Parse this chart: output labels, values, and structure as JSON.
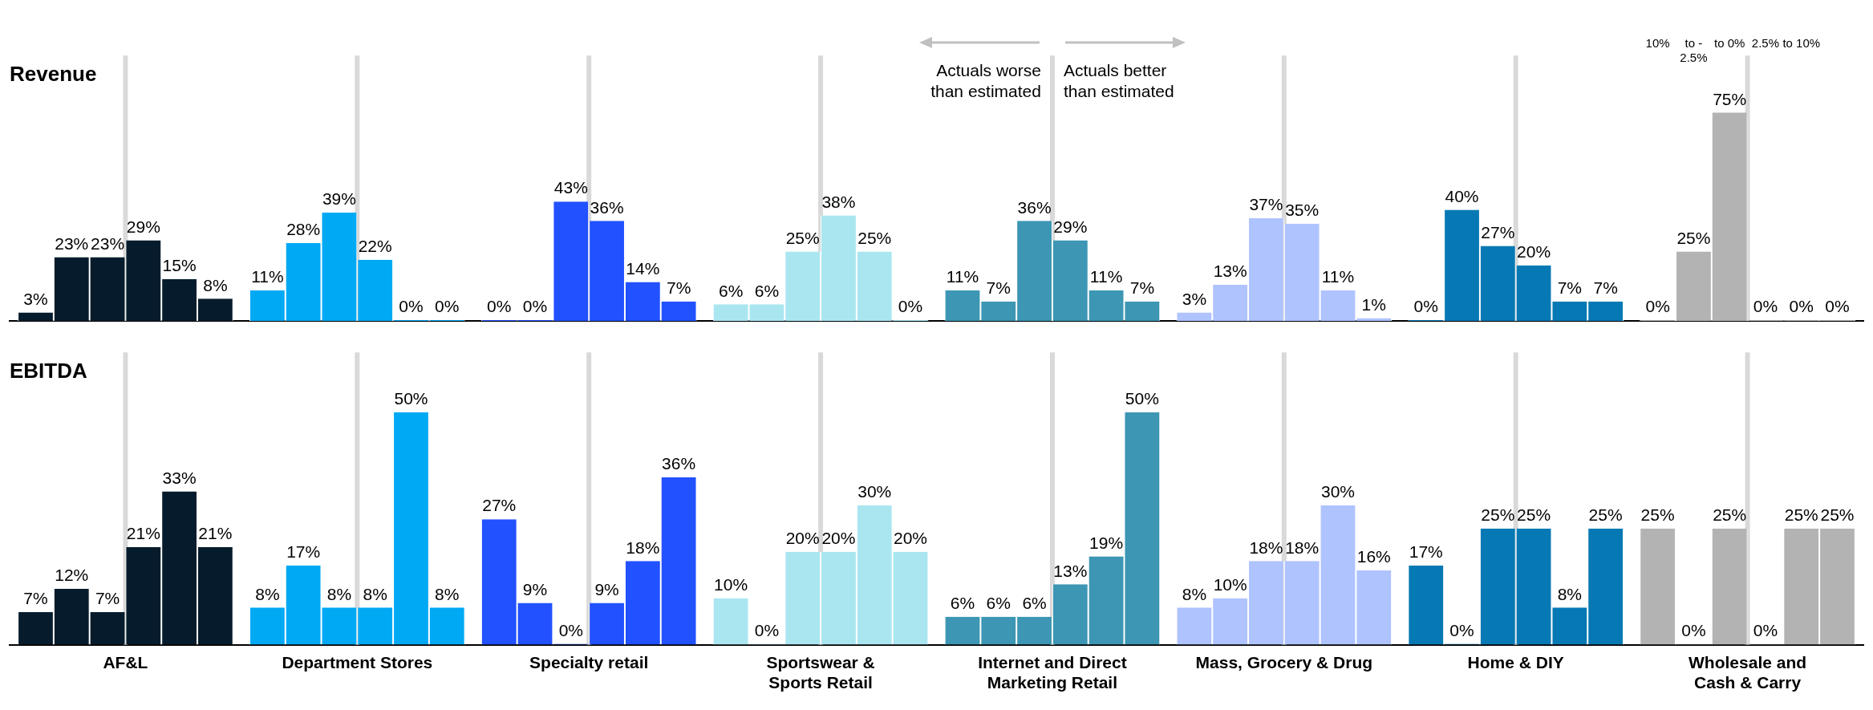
{
  "chart_data": [
    {
      "type": "bar",
      "title": "Revenue",
      "tick_labels": false,
      "categories": [
        "AF&L",
        "Department Stores",
        "Specialty retail",
        "Sportswear & Sports Retail",
        "Internet and Direct Marketing Retail",
        "Mass, Grocery & Drug",
        "Home & DIY",
        "Wholesale and Cash & Carry"
      ],
      "annotations": [
        "Actuals worse than estimated",
        "Actuals better than estimated",
        "10%",
        "to - 2.5%",
        "to 0%",
        "2.5%",
        "to 10%"
      ],
      "ref_lines": [
        {
          "axis": "x",
          "value": "AF&L",
          "color": "#d9d9d9"
        },
        {
          "axis": "x",
          "value": "Department Stores",
          "color": "#d9d9d9"
        },
        {
          "axis": "x",
          "value": "Specialty retail",
          "color": "#d9d9d9"
        },
        {
          "axis": "x",
          "value": "Sportswear & Sports Retail",
          "color": "#d9d9d9"
        },
        {
          "axis": "x",
          "value": "Internet and Direct Marketing Retail",
          "color": "#d9d9d9"
        },
        {
          "axis": "x",
          "value": "Mass, Grocery & Drug",
          "color": "#d9d9d9"
        },
        {
          "axis": "x",
          "value": "Home & DIY",
          "color": "#d9d9d9"
        },
        {
          "axis": "x",
          "value": "Wholesale and Cash & Carry",
          "color": "#d9d9d9"
        }
      ],
      "series": [
        {
          "colors": [
            "#061c2c",
            "#00a9f4",
            "#2251ff",
            "#aae6f0",
            "#3c96b4",
            "#afc3ff",
            "#0679b4",
            "#b3b3b3"
          ],
          "values": [
            3,
            11,
            0,
            6,
            11,
            3,
            0,
            0
          ],
          "value_labels": [
            "3%",
            "11%",
            "0%",
            "6%",
            "11%",
            "3%",
            "0%",
            "0%"
          ]
        },
        {
          "colors": [
            "#061c2c",
            "#00a9f4",
            "#2251ff",
            "#aae6f0",
            "#3c96b4",
            "#afc3ff",
            "#0679b4",
            "#b3b3b3"
          ],
          "values": [
            23,
            28,
            0,
            6,
            7,
            13,
            40,
            25
          ],
          "value_labels": [
            "23%",
            "28%",
            "0%",
            "6%",
            "7%",
            "13%",
            "40%",
            "25%"
          ]
        },
        {
          "colors": [
            "#061c2c",
            "#00a9f4",
            "#2251ff",
            "#aae6f0",
            "#3c96b4",
            "#afc3ff",
            "#0679b4",
            "#b3b3b3"
          ],
          "values": [
            23,
            39,
            43,
            25,
            36,
            37,
            27,
            75
          ],
          "value_labels": [
            "23%",
            "39%",
            "43%",
            "25%",
            "36%",
            "37%",
            "27%",
            "75%"
          ]
        },
        {
          "colors": [
            "#061c2c",
            "#00a9f4",
            "#2251ff",
            "#aae6f0",
            "#3c96b4",
            "#afc3ff",
            "#0679b4",
            "#b3b3b3"
          ],
          "values": [
            29,
            22,
            36,
            38,
            29,
            35,
            20,
            0
          ],
          "value_labels": [
            "29%",
            "22%",
            "36%",
            "38%",
            "29%",
            "35%",
            "20%",
            "0%"
          ]
        },
        {
          "colors": [
            "#061c2c",
            "#00a9f4",
            "#2251ff",
            "#aae6f0",
            "#3c96b4",
            "#afc3ff",
            "#0679b4",
            "#b3b3b3"
          ],
          "values": [
            15,
            0,
            14,
            25,
            11,
            11,
            7,
            0
          ],
          "value_labels": [
            "15%",
            "0%",
            "14%",
            "25%",
            "11%",
            "11%",
            "7%",
            "0%"
          ]
        },
        {
          "colors": [
            "#061c2c",
            "#00a9f4",
            "#2251ff",
            "#aae6f0",
            "#3c96b4",
            "#afc3ff",
            "#0679b4",
            "#b3b3b3"
          ],
          "values": [
            8,
            0,
            7,
            0,
            7,
            1,
            7,
            0
          ],
          "value_labels": [
            "8%",
            "0%",
            "7%",
            "0%",
            "7%",
            "1%",
            "7%",
            "0%"
          ]
        }
      ]
    },
    {
      "type": "bar",
      "title": "EBITDA",
      "ref_lines": [
        {
          "axis": "x",
          "value": "AF&L",
          "color": "#d9d9d9"
        },
        {
          "axis": "x",
          "value": "Department Stores",
          "color": "#d9d9d9"
        },
        {
          "axis": "x",
          "value": "Specialty retail",
          "color": "#d9d9d9"
        },
        {
          "axis": "x",
          "value": "Sportswear & Sports Retail",
          "color": "#d9d9d9"
        },
        {
          "axis": "x",
          "value": "Internet and Direct Marketing Retail",
          "color": "#d9d9d9"
        },
        {
          "axis": "x",
          "value": "Mass, Grocery & Drug",
          "color": "#d9d9d9"
        },
        {
          "axis": "x",
          "value": "Home & DIY",
          "color": "#d9d9d9"
        },
        {
          "axis": "x",
          "value": "Wholesale and Cash & Carry",
          "color": "#d9d9d9"
        }
      ],
      "categories": [
        "AF&L",
        "Department Stores",
        "Specialty retail",
        "Sportswear & Sports Retail",
        "Internet and Direct Marketing Retail",
        "Mass, Grocery & Drug",
        "Home & DIY",
        "Wholesale and Cash & Carry"
      ],
      "series": [
        {
          "colors": [
            "#061c2c",
            "#00a9f4",
            "#2251ff",
            "#aae6f0",
            "#3c96b4",
            "#afc3ff",
            "#0679b4",
            "#b3b3b3"
          ],
          "values": [
            7,
            8,
            27,
            10,
            6,
            8,
            17,
            25
          ],
          "value_labels": [
            "7%",
            "8%",
            "27%",
            "10%",
            "6%",
            "8%",
            "17%",
            "25%"
          ]
        },
        {
          "colors": [
            "#061c2c",
            "#00a9f4",
            "#2251ff",
            "#aae6f0",
            "#3c96b4",
            "#afc3ff",
            "#0679b4",
            "#b3b3b3"
          ],
          "values": [
            12,
            17,
            9,
            0,
            6,
            10,
            0,
            0
          ],
          "value_labels": [
            "12%",
            "17%",
            "9%",
            "0%",
            "6%",
            "10%",
            "0%",
            "0%"
          ]
        },
        {
          "colors": [
            "#061c2c",
            "#00a9f4",
            "#2251ff",
            "#aae6f0",
            "#3c96b4",
            "#afc3ff",
            "#0679b4",
            "#b3b3b3"
          ],
          "values": [
            7,
            8,
            0,
            20,
            6,
            18,
            25,
            25
          ],
          "value_labels": [
            "7%",
            "8%",
            "0%",
            "20%",
            "6%",
            "18%",
            "25%",
            "25%"
          ]
        },
        {
          "colors": [
            "#061c2c",
            "#00a9f4",
            "#2251ff",
            "#aae6f0",
            "#3c96b4",
            "#afc3ff",
            "#0679b4",
            "#b3b3b3"
          ],
          "values": [
            21,
            8,
            9,
            20,
            13,
            18,
            25,
            0
          ],
          "value_labels": [
            "21%",
            "8%",
            "9%",
            "20%",
            "13%",
            "18%",
            "25%",
            "0%"
          ]
        },
        {
          "colors": [
            "#061c2c",
            "#00a9f4",
            "#2251ff",
            "#aae6f0",
            "#3c96b4",
            "#afc3ff",
            "#0679b4",
            "#b3b3b3"
          ],
          "values": [
            33,
            50,
            18,
            30,
            19,
            30,
            8,
            25
          ],
          "value_labels": [
            "33%",
            "50%",
            "18%",
            "30%",
            "19%",
            "30%",
            "8%",
            "25%"
          ]
        },
        {
          "colors": [
            "#061c2c",
            "#00a9f4",
            "#2251ff",
            "#aae6f0",
            "#3c96b4",
            "#afc3ff",
            "#0679b4",
            "#b3b3b3"
          ],
          "values": [
            21,
            8,
            36,
            20,
            50,
            16,
            25,
            25
          ],
          "value_labels": [
            "21%",
            "8%",
            "36%",
            "20%",
            "50%",
            "16%",
            "25%",
            "25%"
          ]
        }
      ]
    }
  ]
}
